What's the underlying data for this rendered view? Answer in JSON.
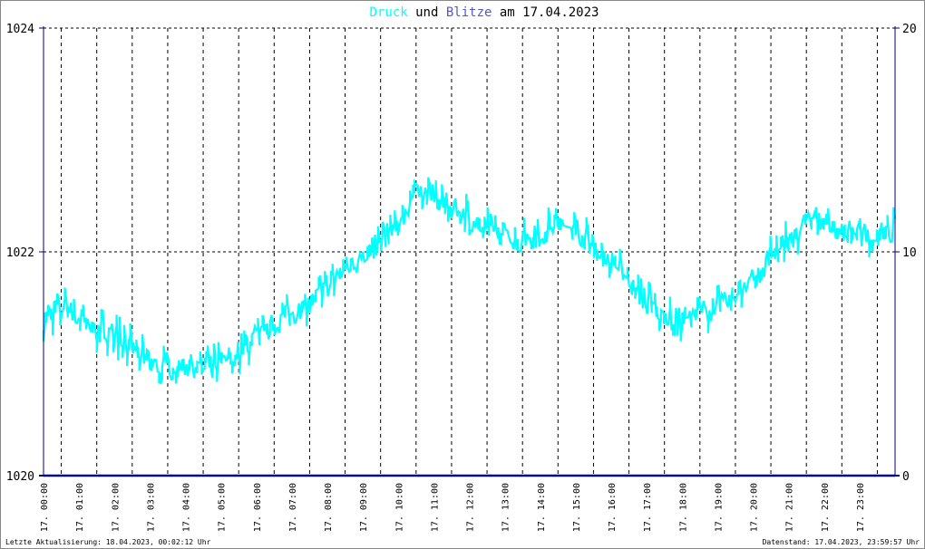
{
  "title": {
    "series1": "Druck",
    "connector": "und",
    "series2": "Blitze",
    "date_prefix": "am",
    "date": "17.04.2023"
  },
  "footer": {
    "left": "Letzte Aktualisierung: 18.04.2023, 00:02:12 Uhr",
    "right": "Datenstand: 17.04.2023, 23:59:57 Uhr"
  },
  "colors": {
    "druck": "#00ffff",
    "blitze": "#000080",
    "title_connector": "#000000",
    "blitze_title": "#5555cc",
    "grid": "#000000",
    "axis": "#000080"
  },
  "chart_data": {
    "type": "line",
    "x_tick_labels": [
      "17. 00:00",
      "17. 01:00",
      "17. 02:00",
      "17. 03:00",
      "17. 04:00",
      "17. 05:00",
      "17. 06:00",
      "17. 07:00",
      "17. 08:00",
      "17. 09:00",
      "17. 10:00",
      "17. 11:00",
      "17. 12:00",
      "17. 13:00",
      "17. 14:00",
      "17. 15:00",
      "17. 16:00",
      "17. 17:00",
      "17. 18:00",
      "17. 19:00",
      "17. 20:00",
      "17. 21:00",
      "17. 22:00",
      "17. 23:00"
    ],
    "y_left": {
      "min": 1020,
      "max": 1024,
      "ticks": [
        "1020",
        "1022",
        "1024"
      ]
    },
    "y_right": {
      "min": 0,
      "max": 20,
      "ticks": [
        "0",
        "10",
        "20"
      ]
    },
    "grid": true,
    "series": [
      {
        "name": "Druck",
        "axis": "left",
        "hours": [
          0,
          0.5,
          1,
          1.5,
          2,
          2.5,
          3,
          3.5,
          4,
          4.5,
          5,
          5.5,
          6,
          6.5,
          7,
          7.5,
          8,
          8.5,
          9,
          9.5,
          10,
          10.25,
          10.5,
          11,
          11.5,
          12,
          12.5,
          13,
          13.5,
          14,
          14.5,
          15,
          15.5,
          16,
          16.5,
          17,
          17.5,
          18,
          18.5,
          19,
          19.5,
          20,
          20.5,
          21,
          21.5,
          22,
          22.5,
          23,
          23.5,
          24
        ],
        "values": [
          1021.4,
          1021.5,
          1021.4,
          1021.3,
          1021.25,
          1021.15,
          1021.0,
          1020.95,
          1021.0,
          1020.95,
          1021.0,
          1021.1,
          1021.25,
          1021.35,
          1021.45,
          1021.55,
          1021.7,
          1021.85,
          1021.95,
          1022.1,
          1022.25,
          1022.4,
          1022.55,
          1022.5,
          1022.4,
          1022.3,
          1022.2,
          1022.15,
          1022.1,
          1022.15,
          1022.25,
          1022.2,
          1022.05,
          1021.9,
          1021.75,
          1021.55,
          1021.4,
          1021.4,
          1021.45,
          1021.5,
          1021.6,
          1021.75,
          1021.95,
          1022.1,
          1022.25,
          1022.25,
          1022.2,
          1022.15,
          1022.15,
          1022.2
        ]
      },
      {
        "name": "Blitze",
        "axis": "right",
        "hours": [
          0,
          24
        ],
        "values": [
          0,
          0
        ]
      }
    ]
  }
}
